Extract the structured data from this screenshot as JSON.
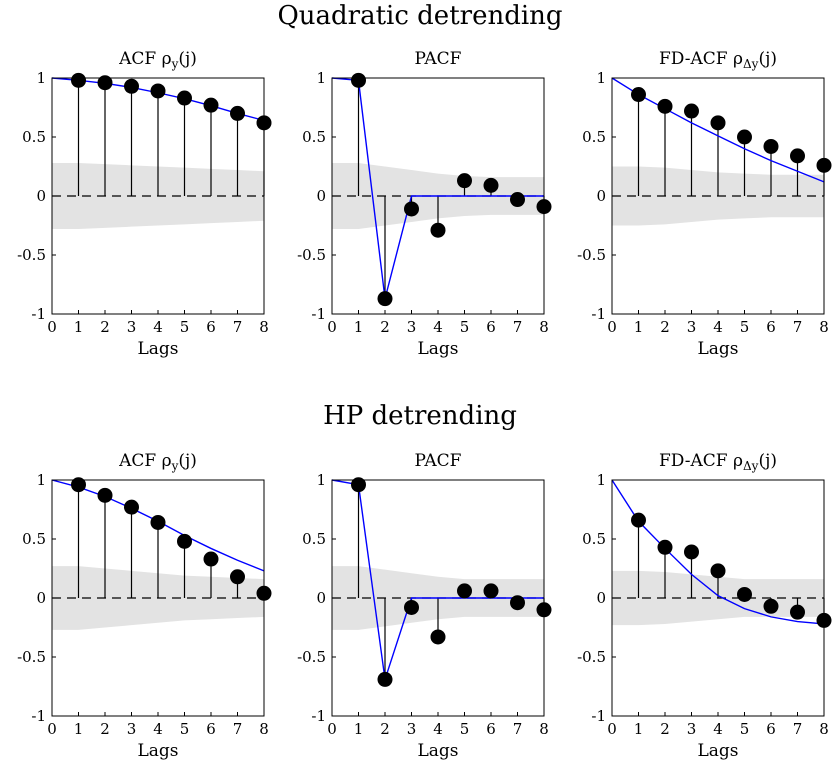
{
  "sections": [
    {
      "title": "Quadratic detrending",
      "panels": [
        {
          "title": "ACF ρ",
          "title_sub": "y",
          "title_arg": "(j)",
          "xlabel": "Lags"
        },
        {
          "title": "PACF",
          "title_sub": "",
          "title_arg": "",
          "xlabel": "Lags"
        },
        {
          "title": "FD-ACF ρ",
          "title_sub": "Δy",
          "title_arg": "(j)",
          "xlabel": "Lags"
        }
      ]
    },
    {
      "title": "HP detrending",
      "panels": [
        {
          "title": "ACF ρ",
          "title_sub": "y",
          "title_arg": "(j)",
          "xlabel": "Lags"
        },
        {
          "title": "PACF",
          "title_sub": "",
          "title_arg": "",
          "xlabel": "Lags"
        },
        {
          "title": "FD-ACF ρ",
          "title_sub": "Δy",
          "title_arg": "(j)",
          "xlabel": "Lags"
        }
      ]
    }
  ],
  "colors": {
    "fit_line": "#0000ff",
    "confidence_band": "#e3e3e3",
    "points": "#000000"
  },
  "chart_data": [
    {
      "type": "scatter",
      "section": "Quadratic detrending",
      "title": "ACF ρy(j)",
      "xlabel": "Lags",
      "ylabel": "",
      "xlim": [
        0,
        8
      ],
      "ylim": [
        -1,
        1
      ],
      "xticks": [
        0,
        1,
        2,
        3,
        4,
        5,
        6,
        7,
        8
      ],
      "yticks": [
        -1,
        -0.5,
        0,
        0.5,
        1
      ],
      "lags": [
        1,
        2,
        3,
        4,
        5,
        6,
        7,
        8
      ],
      "values": [
        0.98,
        0.96,
        0.93,
        0.89,
        0.83,
        0.77,
        0.7,
        0.62
      ],
      "fit": {
        "x": [
          0,
          1,
          2,
          3,
          4,
          5,
          6,
          7,
          8
        ],
        "y": [
          1.0,
          0.98,
          0.955,
          0.92,
          0.875,
          0.825,
          0.765,
          0.7,
          0.64
        ]
      },
      "band": {
        "x": [
          0,
          1,
          2,
          3,
          4,
          5,
          6,
          7,
          8
        ],
        "upper": [
          0.28,
          0.28,
          0.27,
          0.26,
          0.25,
          0.24,
          0.23,
          0.22,
          0.21
        ],
        "lower": [
          -0.28,
          -0.28,
          -0.27,
          -0.26,
          -0.25,
          -0.24,
          -0.23,
          -0.22,
          -0.21
        ]
      }
    },
    {
      "type": "scatter",
      "section": "Quadratic detrending",
      "title": "PACF",
      "xlabel": "Lags",
      "ylabel": "",
      "xlim": [
        0,
        8
      ],
      "ylim": [
        -1,
        1
      ],
      "xticks": [
        0,
        1,
        2,
        3,
        4,
        5,
        6,
        7,
        8
      ],
      "yticks": [
        -1,
        -0.5,
        0,
        0.5,
        1
      ],
      "lags": [
        1,
        2,
        3,
        4,
        5,
        6,
        7,
        8
      ],
      "values": [
        0.98,
        -0.87,
        -0.11,
        -0.29,
        0.13,
        0.09,
        -0.03,
        -0.09
      ],
      "fit": {
        "x": [
          0,
          1,
          2,
          3,
          4,
          5,
          6,
          7,
          8
        ],
        "y": [
          1.0,
          0.98,
          -0.87,
          0.0,
          0.0,
          0.0,
          0.0,
          0.0,
          0.0
        ]
      },
      "band": {
        "x": [
          0,
          1,
          2,
          3,
          4,
          5,
          6,
          7,
          8
        ],
        "upper": [
          0.28,
          0.28,
          0.25,
          0.22,
          0.19,
          0.17,
          0.16,
          0.16,
          0.16
        ],
        "lower": [
          -0.28,
          -0.28,
          -0.25,
          -0.22,
          -0.19,
          -0.17,
          -0.16,
          -0.16,
          -0.16
        ]
      }
    },
    {
      "type": "scatter",
      "section": "Quadratic detrending",
      "title": "FD-ACF ρΔy(j)",
      "xlabel": "Lags",
      "ylabel": "",
      "xlim": [
        0,
        8
      ],
      "ylim": [
        -1,
        1
      ],
      "xticks": [
        0,
        1,
        2,
        3,
        4,
        5,
        6,
        7,
        8
      ],
      "yticks": [
        -1,
        -0.5,
        0,
        0.5,
        1
      ],
      "lags": [
        1,
        2,
        3,
        4,
        5,
        6,
        7,
        8
      ],
      "values": [
        0.86,
        0.76,
        0.72,
        0.62,
        0.5,
        0.42,
        0.34,
        0.26
      ],
      "fit": {
        "x": [
          0,
          1,
          2,
          3,
          4,
          5,
          6,
          7,
          8
        ],
        "y": [
          1.0,
          0.86,
          0.74,
          0.62,
          0.51,
          0.4,
          0.3,
          0.21,
          0.12
        ]
      },
      "band": {
        "x": [
          0,
          1,
          2,
          3,
          4,
          5,
          6,
          7,
          8
        ],
        "upper": [
          0.25,
          0.25,
          0.24,
          0.22,
          0.2,
          0.19,
          0.18,
          0.18,
          0.18
        ],
        "lower": [
          -0.25,
          -0.25,
          -0.24,
          -0.22,
          -0.2,
          -0.19,
          -0.18,
          -0.18,
          -0.18
        ]
      }
    },
    {
      "type": "scatter",
      "section": "HP detrending",
      "title": "ACF ρy(j)",
      "xlabel": "Lags",
      "ylabel": "",
      "xlim": [
        0,
        8
      ],
      "ylim": [
        -1,
        1
      ],
      "xticks": [
        0,
        1,
        2,
        3,
        4,
        5,
        6,
        7,
        8
      ],
      "yticks": [
        -1,
        -0.5,
        0,
        0.5,
        1
      ],
      "lags": [
        1,
        2,
        3,
        4,
        5,
        6,
        7,
        8
      ],
      "values": [
        0.96,
        0.87,
        0.77,
        0.64,
        0.48,
        0.33,
        0.18,
        0.04
      ],
      "fit": {
        "x": [
          0,
          1,
          2,
          3,
          4,
          5,
          6,
          7,
          8
        ],
        "y": [
          1.0,
          0.94,
          0.86,
          0.76,
          0.65,
          0.53,
          0.42,
          0.32,
          0.23
        ]
      },
      "band": {
        "x": [
          0,
          1,
          2,
          3,
          4,
          5,
          6,
          7,
          8
        ],
        "upper": [
          0.27,
          0.27,
          0.25,
          0.23,
          0.21,
          0.19,
          0.18,
          0.17,
          0.16
        ],
        "lower": [
          -0.27,
          -0.27,
          -0.25,
          -0.23,
          -0.21,
          -0.19,
          -0.18,
          -0.17,
          -0.16
        ]
      }
    },
    {
      "type": "scatter",
      "section": "HP detrending",
      "title": "PACF",
      "xlabel": "Lags",
      "ylabel": "",
      "xlim": [
        0,
        8
      ],
      "ylim": [
        -1,
        1
      ],
      "xticks": [
        0,
        1,
        2,
        3,
        4,
        5,
        6,
        7,
        8
      ],
      "yticks": [
        -1,
        -0.5,
        0,
        0.5,
        1
      ],
      "lags": [
        1,
        2,
        3,
        4,
        5,
        6,
        7,
        8
      ],
      "values": [
        0.96,
        -0.69,
        -0.08,
        -0.33,
        0.06,
        0.06,
        -0.04,
        -0.1
      ],
      "fit": {
        "x": [
          0,
          1,
          2,
          3,
          4,
          5,
          6,
          7,
          8
        ],
        "y": [
          1.0,
          0.96,
          -0.69,
          0.0,
          0.0,
          0.0,
          0.0,
          0.0,
          0.0
        ]
      },
      "band": {
        "x": [
          0,
          1,
          2,
          3,
          4,
          5,
          6,
          7,
          8
        ],
        "upper": [
          0.27,
          0.27,
          0.24,
          0.21,
          0.18,
          0.16,
          0.16,
          0.16,
          0.16
        ],
        "lower": [
          -0.27,
          -0.27,
          -0.24,
          -0.21,
          -0.18,
          -0.16,
          -0.16,
          -0.16,
          -0.16
        ]
      }
    },
    {
      "type": "scatter",
      "section": "HP detrending",
      "title": "FD-ACF ρΔy(j)",
      "xlabel": "Lags",
      "ylabel": "",
      "xlim": [
        0,
        8
      ],
      "ylim": [
        -1,
        1
      ],
      "xticks": [
        0,
        1,
        2,
        3,
        4,
        5,
        6,
        7,
        8
      ],
      "yticks": [
        -1,
        -0.5,
        0,
        0.5,
        1
      ],
      "lags": [
        1,
        2,
        3,
        4,
        5,
        6,
        7,
        8
      ],
      "values": [
        0.66,
        0.43,
        0.39,
        0.23,
        0.03,
        -0.07,
        -0.12,
        -0.19
      ],
      "fit": {
        "x": [
          0,
          1,
          2,
          3,
          4,
          5,
          6,
          7,
          8
        ],
        "y": [
          1.0,
          0.65,
          0.42,
          0.2,
          0.02,
          -0.09,
          -0.16,
          -0.2,
          -0.22
        ]
      },
      "band": {
        "x": [
          0,
          1,
          2,
          3,
          4,
          5,
          6,
          7,
          8
        ],
        "upper": [
          0.23,
          0.23,
          0.22,
          0.2,
          0.18,
          0.16,
          0.16,
          0.16,
          0.16
        ],
        "lower": [
          -0.23,
          -0.23,
          -0.22,
          -0.2,
          -0.18,
          -0.16,
          -0.16,
          -0.16,
          -0.16
        ]
      }
    }
  ]
}
